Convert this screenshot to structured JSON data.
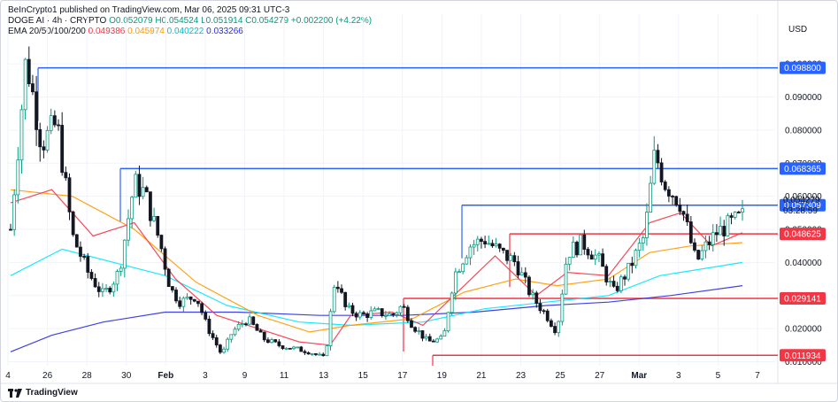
{
  "header": {
    "publisher": "BeInCrypto1 published on TradingView.com, Mar 06, 2025 09:31 UTC-3",
    "symbol_line": "DOGE AI · 4h · CRYPTO",
    "open": "O0.052079",
    "high": "H0.054524",
    "low": "L0.051914",
    "close": "C0.054279",
    "change": "+0.002200 (+4.22%)",
    "ema_label": "EMA 20/50/100/200",
    "ema20": "0.049386",
    "ema50": "0.045974",
    "ema100": "0.040222",
    "ema200": "0.033266"
  },
  "currency": "USD",
  "footer": {
    "brand": "TradingView",
    "logo_icon": "tradingview-logo-icon"
  },
  "colors": {
    "up": "#089981",
    "down": "#131722",
    "resistance": "#2962ff",
    "support": "#f23645",
    "ema20": "#f23645",
    "ema50": "#ff9800",
    "ema100": "#00e5ff",
    "ema200": "#2a2ee0"
  },
  "chart_data": {
    "type": "candlestick",
    "timeframe": "4h",
    "x_ticks": [
      "4",
      "26",
      "28",
      "30",
      "Feb",
      "3",
      "9",
      "11",
      "13",
      "15",
      "17",
      "19",
      "21",
      "23",
      "25",
      "27",
      "Mar",
      "3",
      "5",
      "7"
    ],
    "y_ticks": [
      "0.010000",
      "0.020000",
      "0.030000",
      "0.040000",
      "0.050000",
      "0.060000",
      "0.070000",
      "0.080000",
      "0.090000",
      "0.100000"
    ],
    "ylim": [
      0.0088,
      0.107
    ],
    "last_price": "0.054279",
    "countdown": "03:28:59",
    "resistance_levels": [
      "0.098800",
      "0.068365",
      "0.057309"
    ],
    "support_levels": [
      "0.048625",
      "0.029141",
      "0.011934"
    ],
    "price_path": [
      {
        "x": 0,
        "y": 0.05
      },
      {
        "x": 3,
        "y": 0.102
      },
      {
        "x": 6,
        "y": 0.076
      },
      {
        "x": 9,
        "y": 0.082
      },
      {
        "x": 12,
        "y": 0.048
      },
      {
        "x": 15,
        "y": 0.037
      },
      {
        "x": 18,
        "y": 0.03
      },
      {
        "x": 21,
        "y": 0.037
      },
      {
        "x": 24,
        "y": 0.064
      },
      {
        "x": 26,
        "y": 0.061
      },
      {
        "x": 29,
        "y": 0.046
      },
      {
        "x": 31,
        "y": 0.032
      },
      {
        "x": 33,
        "y": 0.028
      },
      {
        "x": 36,
        "y": 0.03
      },
      {
        "x": 38,
        "y": 0.021
      },
      {
        "x": 41,
        "y": 0.012
      },
      {
        "x": 43,
        "y": 0.019
      },
      {
        "x": 46,
        "y": 0.023
      },
      {
        "x": 49,
        "y": 0.017
      },
      {
        "x": 52,
        "y": 0.015
      },
      {
        "x": 55,
        "y": 0.014
      },
      {
        "x": 58,
        "y": 0.013
      },
      {
        "x": 61,
        "y": 0.011
      },
      {
        "x": 63,
        "y": 0.036
      },
      {
        "x": 65,
        "y": 0.026
      },
      {
        "x": 68,
        "y": 0.024
      },
      {
        "x": 71,
        "y": 0.025
      },
      {
        "x": 74,
        "y": 0.024
      },
      {
        "x": 76,
        "y": 0.027
      },
      {
        "x": 78,
        "y": 0.021
      },
      {
        "x": 81,
        "y": 0.016
      },
      {
        "x": 84,
        "y": 0.017
      },
      {
        "x": 86,
        "y": 0.036
      },
      {
        "x": 89,
        "y": 0.045
      },
      {
        "x": 92,
        "y": 0.047
      },
      {
        "x": 95,
        "y": 0.043
      },
      {
        "x": 98,
        "y": 0.04
      },
      {
        "x": 101,
        "y": 0.03
      },
      {
        "x": 104,
        "y": 0.024
      },
      {
        "x": 106,
        "y": 0.019
      },
      {
        "x": 108,
        "y": 0.043
      },
      {
        "x": 111,
        "y": 0.046
      },
      {
        "x": 114,
        "y": 0.041
      },
      {
        "x": 117,
        "y": 0.031
      },
      {
        "x": 120,
        "y": 0.038
      },
      {
        "x": 123,
        "y": 0.048
      },
      {
        "x": 125,
        "y": 0.073
      },
      {
        "x": 127,
        "y": 0.064
      },
      {
        "x": 130,
        "y": 0.058
      },
      {
        "x": 133,
        "y": 0.04
      },
      {
        "x": 135,
        "y": 0.045
      },
      {
        "x": 137,
        "y": 0.049
      },
      {
        "x": 140,
        "y": 0.052
      },
      {
        "x": 142,
        "y": 0.054
      }
    ],
    "ema20_path": [
      {
        "x": 0,
        "y": 0.058
      },
      {
        "x": 8,
        "y": 0.062
      },
      {
        "x": 16,
        "y": 0.048
      },
      {
        "x": 24,
        "y": 0.052
      },
      {
        "x": 32,
        "y": 0.035
      },
      {
        "x": 40,
        "y": 0.024
      },
      {
        "x": 48,
        "y": 0.02
      },
      {
        "x": 56,
        "y": 0.016
      },
      {
        "x": 62,
        "y": 0.015
      },
      {
        "x": 66,
        "y": 0.024
      },
      {
        "x": 74,
        "y": 0.025
      },
      {
        "x": 80,
        "y": 0.021
      },
      {
        "x": 86,
        "y": 0.03
      },
      {
        "x": 94,
        "y": 0.042
      },
      {
        "x": 102,
        "y": 0.03
      },
      {
        "x": 108,
        "y": 0.037
      },
      {
        "x": 116,
        "y": 0.036
      },
      {
        "x": 124,
        "y": 0.052
      },
      {
        "x": 130,
        "y": 0.055
      },
      {
        "x": 136,
        "y": 0.045
      },
      {
        "x": 142,
        "y": 0.049
      }
    ],
    "ema50_path": [
      {
        "x": 0,
        "y": 0.062
      },
      {
        "x": 12,
        "y": 0.06
      },
      {
        "x": 24,
        "y": 0.05
      },
      {
        "x": 36,
        "y": 0.034
      },
      {
        "x": 48,
        "y": 0.024
      },
      {
        "x": 58,
        "y": 0.019
      },
      {
        "x": 66,
        "y": 0.021
      },
      {
        "x": 78,
        "y": 0.023
      },
      {
        "x": 88,
        "y": 0.031
      },
      {
        "x": 98,
        "y": 0.035
      },
      {
        "x": 106,
        "y": 0.033
      },
      {
        "x": 116,
        "y": 0.035
      },
      {
        "x": 124,
        "y": 0.043
      },
      {
        "x": 132,
        "y": 0.045
      },
      {
        "x": 142,
        "y": 0.046
      }
    ],
    "ema100_path": [
      {
        "x": 0,
        "y": 0.036
      },
      {
        "x": 10,
        "y": 0.044
      },
      {
        "x": 20,
        "y": 0.04
      },
      {
        "x": 30,
        "y": 0.036
      },
      {
        "x": 42,
        "y": 0.027
      },
      {
        "x": 56,
        "y": 0.022
      },
      {
        "x": 66,
        "y": 0.021
      },
      {
        "x": 80,
        "y": 0.022
      },
      {
        "x": 92,
        "y": 0.026
      },
      {
        "x": 104,
        "y": 0.028
      },
      {
        "x": 116,
        "y": 0.03
      },
      {
        "x": 126,
        "y": 0.036
      },
      {
        "x": 142,
        "y": 0.04
      }
    ],
    "ema200_path": [
      {
        "x": 0,
        "y": 0.013
      },
      {
        "x": 8,
        "y": 0.018
      },
      {
        "x": 18,
        "y": 0.022
      },
      {
        "x": 30,
        "y": 0.025
      },
      {
        "x": 44,
        "y": 0.025
      },
      {
        "x": 60,
        "y": 0.024
      },
      {
        "x": 76,
        "y": 0.024
      },
      {
        "x": 90,
        "y": 0.025
      },
      {
        "x": 104,
        "y": 0.027
      },
      {
        "x": 116,
        "y": 0.028
      },
      {
        "x": 128,
        "y": 0.03
      },
      {
        "x": 142,
        "y": 0.033
      }
    ]
  }
}
